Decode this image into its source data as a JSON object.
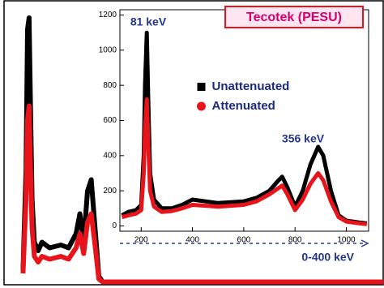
{
  "chart_data": [
    {
      "type": "line",
      "title": "Tecotek (PESU)",
      "annotations": [
        "0-400 keV"
      ],
      "x": [
        5,
        5.8,
        6.2,
        6.6,
        7,
        7.4,
        8,
        9,
        10,
        12,
        15,
        17,
        19,
        20,
        21,
        22,
        23,
        24,
        25,
        26,
        100
      ],
      "series": [
        {
          "name": "Unattenuated",
          "color": "#000000",
          "marker": "square",
          "values": [
            5,
            40,
            90,
            94,
            60,
            30,
            15,
            12,
            15,
            13,
            14,
            13,
            18,
            25,
            15,
            33,
            37,
            20,
            3,
            1,
            1
          ]
        },
        {
          "name": "Attenuated",
          "color": "#e8141c",
          "marker": "circle",
          "values": [
            4,
            30,
            58,
            63,
            40,
            20,
            10,
            8,
            10,
            9,
            10,
            9,
            13,
            18,
            11,
            22,
            25,
            14,
            2,
            1,
            1
          ]
        }
      ],
      "xlim": [
        0,
        100
      ],
      "ylim": [
        0,
        100
      ]
    },
    {
      "type": "line",
      "annotations": [
        "81 keV",
        "356 keV"
      ],
      "legend": "upper center",
      "x": [
        125,
        150,
        180,
        200,
        210,
        215,
        222,
        228,
        235,
        250,
        280,
        320,
        360,
        400,
        450,
        500,
        550,
        600,
        650,
        700,
        730,
        750,
        770,
        800,
        830,
        860,
        890,
        910,
        940,
        970,
        1000,
        1050,
        1080
      ],
      "series": [
        {
          "name": "Unattenuated",
          "color": "#000000",
          "marker": "square",
          "values": [
            60,
            80,
            90,
            120,
            400,
            800,
            1100,
            700,
            300,
            150,
            100,
            100,
            120,
            150,
            140,
            130,
            135,
            140,
            160,
            200,
            250,
            280,
            220,
            110,
            200,
            350,
            450,
            400,
            200,
            60,
            30,
            20,
            15
          ]
        },
        {
          "name": "Attenuated",
          "color": "#e8141c",
          "marker": "circle",
          "values": [
            50,
            60,
            70,
            90,
            300,
            550,
            720,
            450,
            200,
            110,
            80,
            85,
            100,
            120,
            115,
            110,
            115,
            120,
            140,
            180,
            210,
            230,
            180,
            90,
            150,
            240,
            300,
            260,
            140,
            50,
            25,
            15,
            10
          ]
        }
      ],
      "xlim": [
        117,
        1087
      ],
      "ylim": [
        -30,
        1230
      ],
      "xticks": [
        200,
        400,
        600,
        800,
        1000
      ],
      "yticks": [
        0,
        200,
        400,
        600,
        800,
        1000,
        1200
      ]
    }
  ]
}
